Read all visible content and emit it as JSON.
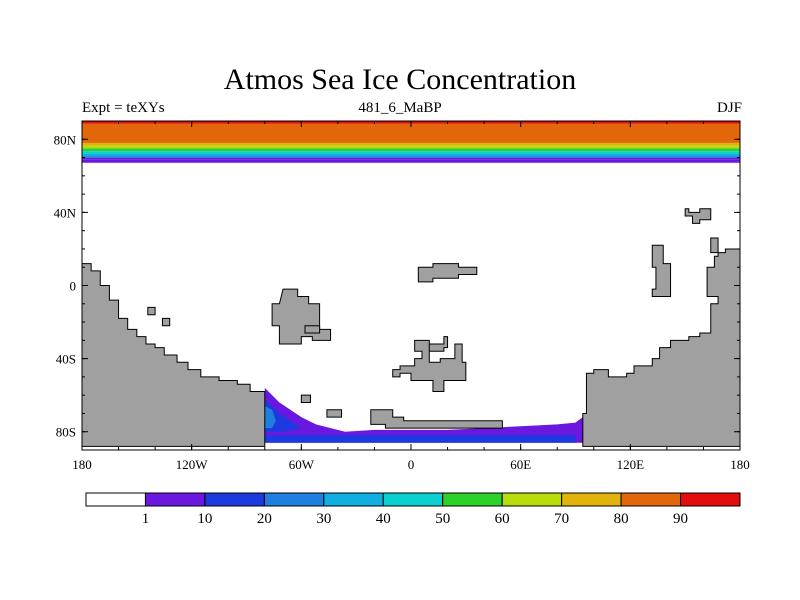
{
  "title": "Atmos Sea Ice Concentration",
  "subtitle_left": "Expt = teXYs",
  "subtitle_center": "481_6_MaBP",
  "subtitle_right": "DJF",
  "lon_ticks": [
    {
      "value": -180,
      "label": "180"
    },
    {
      "value": -120,
      "label": "120W"
    },
    {
      "value": -60,
      "label": "60W"
    },
    {
      "value": 0,
      "label": "0"
    },
    {
      "value": 60,
      "label": "60E"
    },
    {
      "value": 120,
      "label": "120E"
    },
    {
      "value": 180,
      "label": "180"
    }
  ],
  "lat_ticks": [
    {
      "value": 80,
      "label": "80N"
    },
    {
      "value": 40,
      "label": "40N"
    },
    {
      "value": 0,
      "label": "0"
    },
    {
      "value": -40,
      "label": "40S"
    },
    {
      "value": -80,
      "label": "80S"
    }
  ],
  "lon_range": [
    -180,
    180
  ],
  "lat_range": [
    -90,
    90
  ],
  "colorbar": {
    "colors": [
      "#ffffff",
      "#6a17e0",
      "#1c3ae0",
      "#1f7fe0",
      "#11aee2",
      "#0ccfcf",
      "#2ed12a",
      "#b6dc0c",
      "#e0b40a",
      "#e2660a",
      "#e30d0d"
    ],
    "labels": [
      "1",
      "10",
      "20",
      "30",
      "40",
      "50",
      "60",
      "70",
      "80",
      "90"
    ]
  },
  "arctic_bands": [
    {
      "lat_south": 90,
      "color": "#0ccfcf"
    },
    {
      "lat_south": 88.5,
      "color": "#e30d0d"
    },
    {
      "lat_south": 78,
      "color": "#e2660a"
    },
    {
      "lat_south": 76.5,
      "color": "#e0b40a"
    },
    {
      "lat_south": 75,
      "color": "#b6dc0c"
    },
    {
      "lat_south": 73.5,
      "color": "#2ed12a"
    },
    {
      "lat_south": 72,
      "color": "#0ccfcf"
    },
    {
      "lat_south": 70.8,
      "color": "#11aee2"
    },
    {
      "lat_south": 69.8,
      "color": "#1f7fe0"
    },
    {
      "lat_south": 68.8,
      "color": "#6a17e0"
    }
  ],
  "land_color": "#a0a0a0",
  "land_polygons": [
    [
      [
        -180,
        -88
      ],
      [
        -180,
        12
      ],
      [
        -175,
        12
      ],
      [
        -175,
        8
      ],
      [
        -170,
        8
      ],
      [
        -170,
        0
      ],
      [
        -165,
        0
      ],
      [
        -165,
        -8
      ],
      [
        -160,
        -8
      ],
      [
        -160,
        -18
      ],
      [
        -155,
        -18
      ],
      [
        -155,
        -24
      ],
      [
        -150,
        -24
      ],
      [
        -150,
        -28
      ],
      [
        -145,
        -28
      ],
      [
        -145,
        -32
      ],
      [
        -140,
        -32
      ],
      [
        -140,
        -34
      ],
      [
        -135,
        -34
      ],
      [
        -135,
        -38
      ],
      [
        -128,
        -38
      ],
      [
        -128,
        -42
      ],
      [
        -122,
        -42
      ],
      [
        -122,
        -46
      ],
      [
        -115,
        -46
      ],
      [
        -115,
        -50
      ],
      [
        -105,
        -50
      ],
      [
        -105,
        -52
      ],
      [
        -95,
        -52
      ],
      [
        -95,
        -54
      ],
      [
        -88,
        -54
      ],
      [
        -88,
        -58
      ],
      [
        -80,
        -58
      ],
      [
        -80,
        -88
      ]
    ],
    [
      [
        -144,
        -12
      ],
      [
        -140,
        -12
      ],
      [
        -140,
        -16
      ],
      [
        -144,
        -16
      ]
    ],
    [
      [
        -136,
        -18
      ],
      [
        -132,
        -18
      ],
      [
        -132,
        -22
      ],
      [
        -136,
        -22
      ]
    ],
    [
      [
        -70,
        -2
      ],
      [
        -62,
        -2
      ],
      [
        -62,
        -6
      ],
      [
        -56,
        -6
      ],
      [
        -56,
        -10
      ],
      [
        -50,
        -10
      ],
      [
        -50,
        -24
      ],
      [
        -44,
        -24
      ],
      [
        -44,
        -30
      ],
      [
        -54,
        -30
      ],
      [
        -54,
        -28
      ],
      [
        -60,
        -28
      ],
      [
        -60,
        -32
      ],
      [
        -72,
        -32
      ],
      [
        -72,
        -22
      ],
      [
        -76,
        -22
      ],
      [
        -76,
        -10
      ],
      [
        -72,
        -10
      ]
    ],
    [
      [
        -58,
        -22
      ],
      [
        -50,
        -22
      ],
      [
        -50,
        -26
      ],
      [
        -58,
        -26
      ]
    ],
    [
      [
        -60,
        -60
      ],
      [
        -55,
        -60
      ],
      [
        -55,
        -64
      ],
      [
        -60,
        -64
      ]
    ],
    [
      [
        -46,
        -68
      ],
      [
        -38,
        -68
      ],
      [
        -38,
        -72
      ],
      [
        -46,
        -72
      ]
    ],
    [
      [
        -22,
        -68
      ],
      [
        -10,
        -68
      ],
      [
        -10,
        -72
      ],
      [
        -4,
        -72
      ],
      [
        -4,
        -74
      ],
      [
        50,
        -74
      ],
      [
        50,
        -76
      ],
      [
        50,
        -78
      ],
      [
        -14,
        -78
      ],
      [
        -14,
        -76
      ],
      [
        -22,
        -76
      ]
    ],
    [
      [
        4,
        10
      ],
      [
        12,
        10
      ],
      [
        12,
        12
      ],
      [
        26,
        12
      ],
      [
        26,
        10
      ],
      [
        36,
        10
      ],
      [
        36,
        6
      ],
      [
        26,
        6
      ],
      [
        26,
        4
      ],
      [
        12,
        4
      ],
      [
        12,
        2
      ],
      [
        4,
        2
      ]
    ],
    [
      [
        2,
        -30
      ],
      [
        10,
        -30
      ],
      [
        10,
        -36
      ],
      [
        18,
        -36
      ],
      [
        18,
        -34
      ],
      [
        20,
        -34
      ],
      [
        20,
        -28
      ],
      [
        18,
        -28
      ],
      [
        18,
        -32
      ],
      [
        10,
        -32
      ],
      [
        10,
        -42
      ],
      [
        16,
        -42
      ],
      [
        16,
        -40
      ],
      [
        24,
        -40
      ],
      [
        24,
        -32
      ],
      [
        28,
        -32
      ],
      [
        28,
        -42
      ],
      [
        30,
        -42
      ],
      [
        30,
        -52
      ],
      [
        18,
        -52
      ],
      [
        18,
        -58
      ],
      [
        12,
        -58
      ],
      [
        12,
        -52
      ],
      [
        0,
        -52
      ],
      [
        0,
        -48
      ],
      [
        -6,
        -48
      ],
      [
        -6,
        -50
      ],
      [
        -10,
        -50
      ],
      [
        -10,
        -46
      ],
      [
        -6,
        -46
      ],
      [
        -6,
        -44
      ],
      [
        2,
        -44
      ],
      [
        2,
        -40
      ],
      [
        6,
        -40
      ],
      [
        6,
        -36
      ],
      [
        2,
        -36
      ]
    ],
    [
      [
        132,
        22
      ],
      [
        138,
        22
      ],
      [
        138,
        12
      ],
      [
        142,
        12
      ],
      [
        142,
        -6
      ],
      [
        132,
        -6
      ],
      [
        132,
        -2
      ],
      [
        134,
        -2
      ],
      [
        134,
        10
      ],
      [
        132,
        10
      ]
    ],
    [
      [
        150,
        42
      ],
      [
        152,
        42
      ],
      [
        152,
        40
      ],
      [
        158,
        40
      ],
      [
        158,
        42
      ],
      [
        164,
        42
      ],
      [
        164,
        36
      ],
      [
        158,
        36
      ],
      [
        158,
        34
      ],
      [
        154,
        34
      ],
      [
        154,
        38
      ],
      [
        150,
        38
      ]
    ],
    [
      [
        164,
        26
      ],
      [
        168,
        26
      ],
      [
        168,
        18
      ],
      [
        164,
        18
      ]
    ],
    [
      [
        166,
        16
      ],
      [
        168,
        16
      ],
      [
        168,
        18
      ],
      [
        172,
        18
      ],
      [
        172,
        20
      ],
      [
        180,
        20
      ],
      [
        180,
        -88
      ],
      [
        94,
        -88
      ],
      [
        94,
        -70
      ],
      [
        96,
        -70
      ],
      [
        96,
        -48
      ],
      [
        100,
        -48
      ],
      [
        100,
        -46
      ],
      [
        108,
        -46
      ],
      [
        108,
        -50
      ],
      [
        118,
        -50
      ],
      [
        118,
        -48
      ],
      [
        122,
        -48
      ],
      [
        122,
        -44
      ],
      [
        132,
        -44
      ],
      [
        132,
        -40
      ],
      [
        136,
        -40
      ],
      [
        136,
        -34
      ],
      [
        142,
        -34
      ],
      [
        142,
        -30
      ],
      [
        152,
        -30
      ],
      [
        152,
        -28
      ],
      [
        158,
        -28
      ],
      [
        158,
        -26
      ],
      [
        164,
        -26
      ],
      [
        164,
        -10
      ],
      [
        168,
        -10
      ],
      [
        168,
        -6
      ],
      [
        162,
        -6
      ],
      [
        162,
        10
      ],
      [
        166,
        10
      ]
    ]
  ],
  "antarctic_ice": [
    {
      "color": "#6a17e0",
      "points": [
        [
          -80,
          -56
        ],
        [
          -76,
          -60
        ],
        [
          -72,
          -64
        ],
        [
          -66,
          -68
        ],
        [
          -60,
          -72
        ],
        [
          -52,
          -76
        ],
        [
          -44,
          -78
        ],
        [
          -36,
          -80
        ],
        [
          -20,
          -79
        ],
        [
          0,
          -79
        ],
        [
          20,
          -79
        ],
        [
          40,
          -78
        ],
        [
          60,
          -77
        ],
        [
          80,
          -76
        ],
        [
          90,
          -75
        ],
        [
          94,
          -72
        ],
        [
          96,
          -78
        ],
        [
          100,
          -82
        ],
        [
          100,
          -86
        ],
        [
          -90,
          -86
        ],
        [
          -90,
          -82
        ],
        [
          -80,
          -82
        ]
      ]
    },
    {
      "color": "#1c3ae0",
      "points": [
        [
          -80,
          -62
        ],
        [
          -76,
          -66
        ],
        [
          -72,
          -70
        ],
        [
          -66,
          -74
        ],
        [
          -60,
          -78
        ],
        [
          -70,
          -80
        ],
        [
          -80,
          -80
        ]
      ]
    },
    {
      "color": "#1f7fe0",
      "points": [
        [
          -80,
          -66
        ],
        [
          -76,
          -68
        ],
        [
          -74,
          -74
        ],
        [
          -76,
          -78
        ],
        [
          -80,
          -78
        ]
      ]
    },
    {
      "color": "#1c3ae0",
      "points": [
        [
          -88,
          -82
        ],
        [
          90,
          -82
        ],
        [
          90,
          -86
        ],
        [
          -88,
          -86
        ]
      ]
    }
  ]
}
